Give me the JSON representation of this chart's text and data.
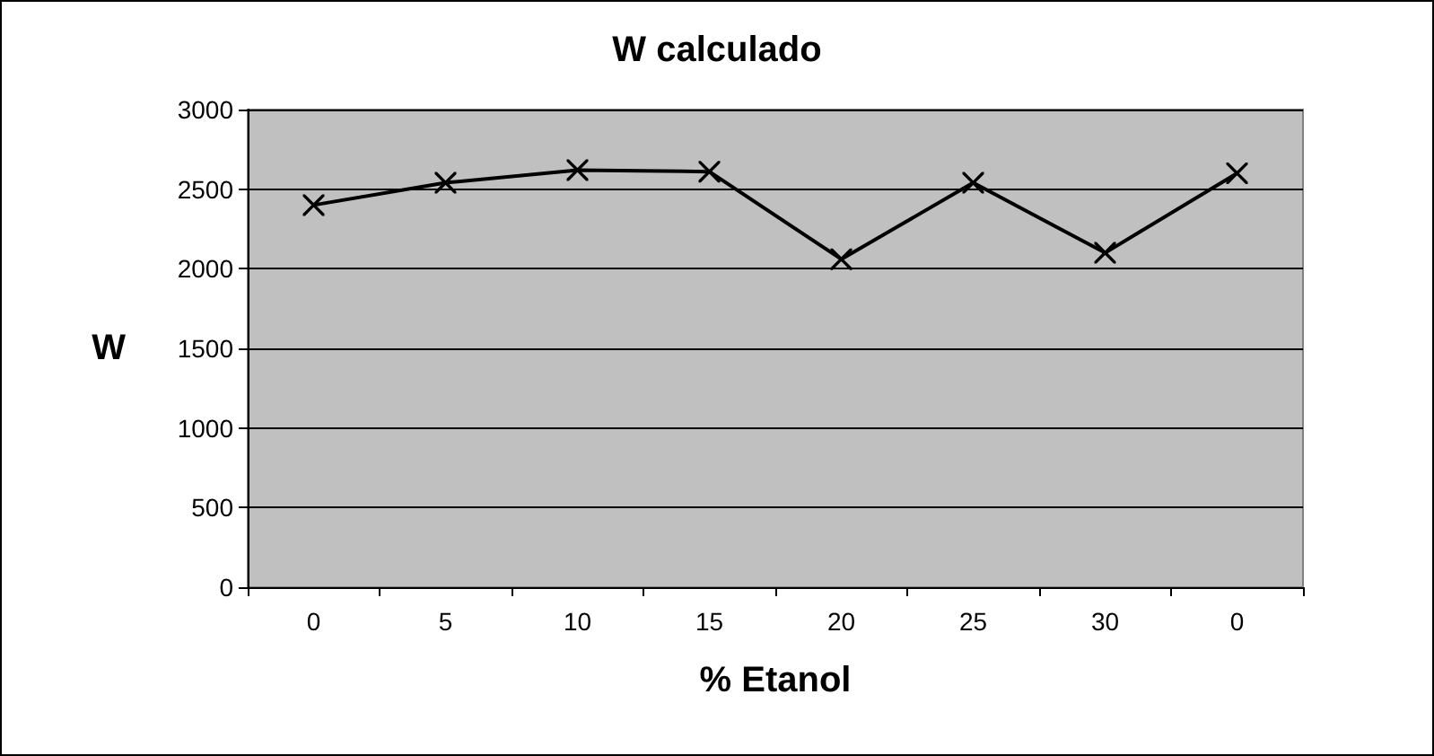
{
  "chart_data": {
    "type": "line",
    "title": "W calculado",
    "xlabel": "% Etanol",
    "ylabel": "W",
    "categories": [
      "0",
      "5",
      "10",
      "15",
      "20",
      "25",
      "30",
      "0"
    ],
    "series": [
      {
        "color": "#000000",
        "values": [
          2400,
          2540,
          2620,
          2610,
          2060,
          2540,
          2100,
          2600
        ]
      }
    ],
    "ylim": [
      0,
      3000
    ],
    "yticks": [
      0,
      500,
      1000,
      1500,
      2000,
      2500,
      3000
    ],
    "grid": "y",
    "marker": "cross",
    "line_style": "solid"
  }
}
